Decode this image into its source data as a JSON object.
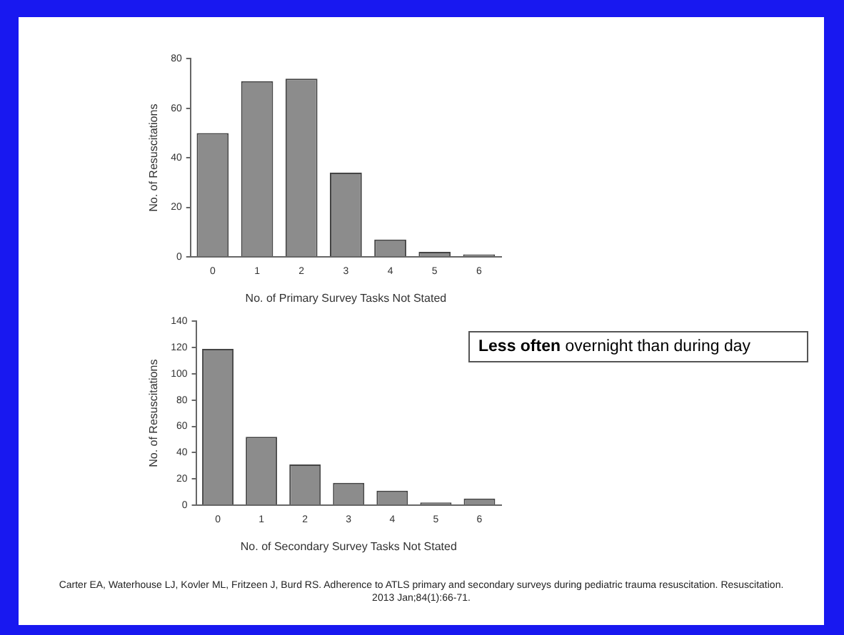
{
  "chart_data": [
    {
      "type": "bar",
      "xlabel": "No. of Primary Survey Tasks Not Stated",
      "ylabel": "No. of Resuscitations",
      "categories": [
        "0",
        "1",
        "2",
        "3",
        "4",
        "5",
        "6"
      ],
      "values": [
        50,
        71,
        72,
        34,
        7,
        2,
        1
      ],
      "color": "#8c8c8c",
      "ylim": [
        0,
        80
      ],
      "yticks": [
        0,
        20,
        40,
        60,
        80
      ],
      "grid": false,
      "legend": false
    },
    {
      "type": "bar",
      "xlabel": "No. of Secondary Survey Tasks Not Stated",
      "ylabel": "No. of Resuscitations",
      "categories": [
        "0",
        "1",
        "2",
        "3",
        "4",
        "5",
        "6"
      ],
      "values": [
        119,
        52,
        31,
        17,
        11,
        2,
        5
      ],
      "color": "#8c8c8c",
      "ylim": [
        0,
        140
      ],
      "yticks": [
        0,
        20,
        40,
        60,
        80,
        100,
        120,
        140
      ],
      "grid": false,
      "legend": false,
      "annotations": [
        "Less often overnight than during day",
        "Carter EA, Waterhouse LJ, Kovler ML, Fritzeen J, Burd RS. Adherence to ATLS primary and secondary surveys during pediatric trauma resuscitation. Resuscitation. 2013 Jan;84(1):66-71."
      ]
    }
  ]
}
